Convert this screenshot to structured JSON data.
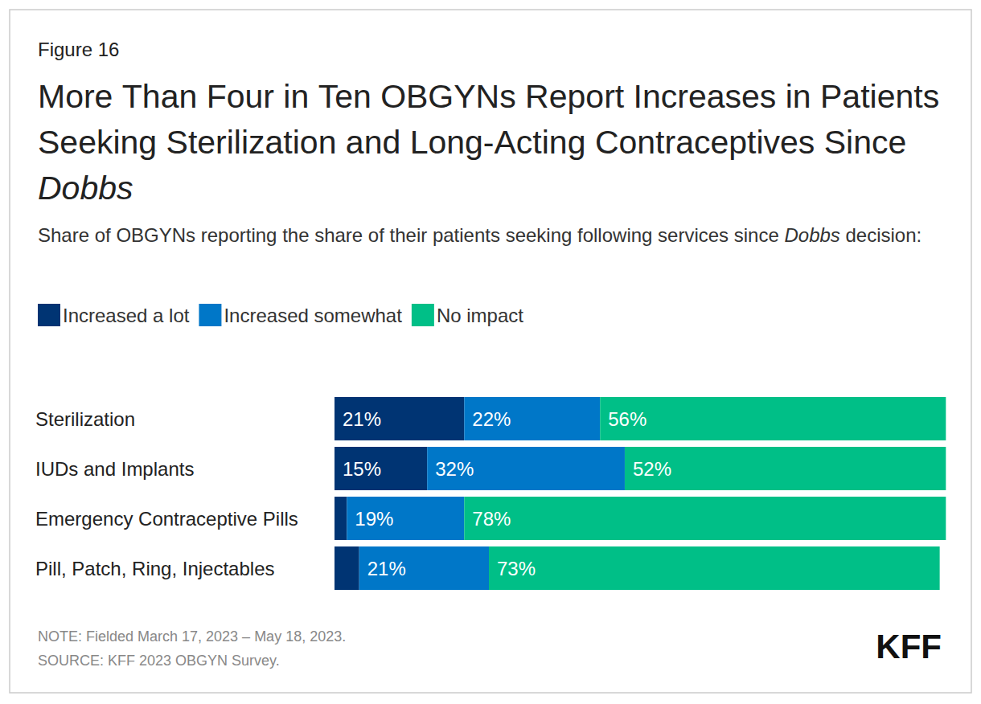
{
  "chart_data": {
    "type": "bar",
    "orientation": "horizontal",
    "stacked": true,
    "data_labels": true,
    "tick_labels": "y",
    "grid": false,
    "legend": "top-left",
    "figure_label": "Figure 16",
    "title": "More Than Four in Ten OBGYNs Report Increases in Patients Seeking Sterilization and Long-Acting Contraceptives Since Dobbs",
    "subtitle": "Share of OBGYNs reporting the share of their patients seeking following services since Dobbs decision:",
    "note": "NOTE: Fielded March 17, 2023 – May 18, 2023.",
    "source": "SOURCE: KFF 2023 OBGYN Survey.",
    "brand": "KFF",
    "categories": [
      "Sterilization",
      "IUDs and Implants",
      "Emergency Contraceptive Pills",
      "Pill, Patch, Ring, Injectables"
    ],
    "xlim": [
      0,
      100
    ],
    "series": [
      {
        "name": "Increased a lot",
        "color": "#003473",
        "values": [
          21,
          15,
          2,
          4
        ],
        "value_labels": [
          "21%",
          "15%",
          null,
          null
        ]
      },
      {
        "name": "Increased somewhat",
        "color": "#0077c8",
        "values": [
          22,
          32,
          19,
          21
        ],
        "value_labels": [
          "22%",
          "32%",
          "19%",
          "21%"
        ]
      },
      {
        "name": "No impact",
        "color": "#00bf87",
        "values": [
          56,
          52,
          78,
          73
        ],
        "value_labels": [
          "56%",
          "52%",
          "78%",
          "73%"
        ]
      }
    ]
  }
}
